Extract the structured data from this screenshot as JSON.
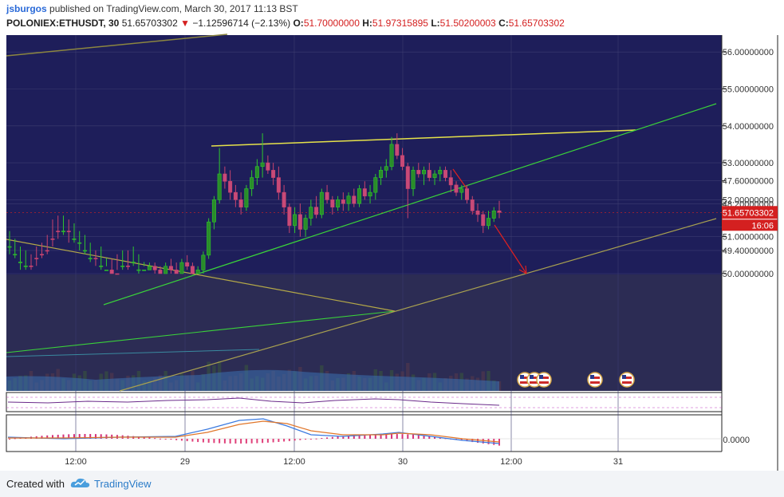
{
  "header": {
    "user": "jsburgos",
    "published_text": "published on TradingView.com, March 30, 2017 11:13 BST",
    "symbol": "POLONIEX:ETHUSDT, 30",
    "price": "51.65703302",
    "down_arrow": "▼",
    "change": "−1.12596714 (−2.13%)",
    "o_label": "O:",
    "o_value": "51.70000000",
    "h_label": "H:",
    "h_value": "51.97315895",
    "l_label": "L:",
    "l_value": "51.50200003",
    "c_label": "C:",
    "c_value": "51.65703302"
  },
  "footer": {
    "created_with": "Created with",
    "brand": "TradingView"
  },
  "colors": {
    "background": "#1e1e5a",
    "lower_background": "#2c2c54",
    "up_candle": "#2ec62e",
    "down_candle": "#c8436e",
    "trend_yellow": "#e6e24a",
    "trend_green": "#3ad23a",
    "trend_olive": "#8c8640",
    "arrow_red": "#e02020",
    "price_tag": "#d42020"
  },
  "chart_data": {
    "type": "candlestick",
    "symbol": "POLONIEX:ETHUSDT",
    "interval": "30",
    "last_price": "51.65703302",
    "countdown": "16:06",
    "price_axis": [
      "56.00000000",
      "55.00000000",
      "54.00000000",
      "53.00000000",
      "52.00000000",
      "51.00000000",
      "50.00000000",
      "49.40000000",
      "48.80000000",
      "48.20000000",
      "47.60000000"
    ],
    "time_axis": [
      "12:00",
      "29",
      "12:00",
      "30",
      "12:00",
      "31"
    ],
    "indicator_axis": [
      "0.0000"
    ],
    "ohlc": [
      [
        49.1,
        49.5,
        48.9,
        49.3
      ],
      [
        49.3,
        49.6,
        49.1,
        49.5
      ],
      [
        49.5,
        49.9,
        49.3,
        49.7
      ],
      [
        49.7,
        49.9,
        49.4,
        49.8
      ],
      [
        49.8,
        49.9,
        49.5,
        49.6
      ],
      [
        49.6,
        49.8,
        49.3,
        49.5
      ],
      [
        49.5,
        49.6,
        49.2,
        49.4
      ],
      [
        49.4,
        49.5,
        49.0,
        49.1
      ],
      [
        49.1,
        49.3,
        48.6,
        48.9
      ],
      [
        48.9,
        49.1,
        48.5,
        48.6
      ],
      [
        48.6,
        49.0,
        48.5,
        48.9
      ],
      [
        48.9,
        49.2,
        48.6,
        48.8
      ],
      [
        48.8,
        49.2,
        48.7,
        49.1
      ],
      [
        49.1,
        49.4,
        48.9,
        49.2
      ],
      [
        49.2,
        49.5,
        49.0,
        49.4
      ],
      [
        49.4,
        49.7,
        49.2,
        49.6
      ],
      [
        49.6,
        49.8,
        49.4,
        49.5
      ],
      [
        49.5,
        49.9,
        49.3,
        49.8
      ],
      [
        49.8,
        50.2,
        49.6,
        50.1
      ],
      [
        50.1,
        50.4,
        49.9,
        50.0
      ],
      [
        50.0,
        50.1,
        49.5,
        49.7
      ],
      [
        49.7,
        49.9,
        49.4,
        49.8
      ],
      [
        49.8,
        49.9,
        49.4,
        49.6
      ],
      [
        49.6,
        49.8,
        49.3,
        49.7
      ],
      [
        49.7,
        50.0,
        49.5,
        49.9
      ],
      [
        49.9,
        50.2,
        49.7,
        50.1
      ],
      [
        50.1,
        50.3,
        49.9,
        50.2
      ],
      [
        50.2,
        50.3,
        50.0,
        50.1
      ],
      [
        50.1,
        50.2,
        49.9,
        50.0
      ],
      [
        50.0,
        50.3,
        49.8,
        50.2
      ],
      [
        50.2,
        50.4,
        50.0,
        50.1
      ],
      [
        50.1,
        50.3,
        49.9,
        50.0
      ],
      [
        50.0,
        50.4,
        49.9,
        50.3
      ],
      [
        50.3,
        50.5,
        50.1,
        50.2
      ],
      [
        50.2,
        50.3,
        49.9,
        50.0
      ],
      [
        50.0,
        50.2,
        49.9,
        50.1
      ],
      [
        50.1,
        50.6,
        50.0,
        50.5
      ],
      [
        50.5,
        51.5,
        50.4,
        51.4
      ],
      [
        51.4,
        52.1,
        51.2,
        52.0
      ],
      [
        52.0,
        53.4,
        51.9,
        52.7
      ],
      [
        52.7,
        52.9,
        52.3,
        52.5
      ],
      [
        52.5,
        52.8,
        52.0,
        52.2
      ],
      [
        52.2,
        52.4,
        51.8,
        52.0
      ],
      [
        52.0,
        52.2,
        51.6,
        51.8
      ],
      [
        51.8,
        52.4,
        51.7,
        52.3
      ],
      [
        52.3,
        52.8,
        52.1,
        52.6
      ],
      [
        52.6,
        53.1,
        52.4,
        52.9
      ],
      [
        52.9,
        53.8,
        52.6,
        53.0
      ],
      [
        53.0,
        53.2,
        52.7,
        52.8
      ],
      [
        52.8,
        53.0,
        52.4,
        52.6
      ],
      [
        52.6,
        52.9,
        52.0,
        52.2
      ],
      [
        52.2,
        52.4,
        51.6,
        51.8
      ],
      [
        51.8,
        51.9,
        51.1,
        51.3
      ],
      [
        51.3,
        51.8,
        51.1,
        51.6
      ],
      [
        51.6,
        51.9,
        51.0,
        51.2
      ],
      [
        51.2,
        51.6,
        51.0,
        51.5
      ],
      [
        51.5,
        52.0,
        51.3,
        51.8
      ],
      [
        51.8,
        52.1,
        51.5,
        51.6
      ],
      [
        51.6,
        52.3,
        51.5,
        52.2
      ],
      [
        52.2,
        52.4,
        51.9,
        52.0
      ],
      [
        52.0,
        52.1,
        51.6,
        51.8
      ],
      [
        51.8,
        52.1,
        51.7,
        52.0
      ],
      [
        52.0,
        52.2,
        51.7,
        51.9
      ],
      [
        51.9,
        52.2,
        51.7,
        52.1
      ],
      [
        52.1,
        52.3,
        51.8,
        51.9
      ],
      [
        51.9,
        52.4,
        51.8,
        52.3
      ],
      [
        52.3,
        52.5,
        52.0,
        52.1
      ],
      [
        52.1,
        52.4,
        51.9,
        52.2
      ],
      [
        52.2,
        52.7,
        52.0,
        52.6
      ],
      [
        52.6,
        52.9,
        52.4,
        52.8
      ],
      [
        52.8,
        53.1,
        52.6,
        52.9
      ],
      [
        52.9,
        53.7,
        52.8,
        53.5
      ],
      [
        53.5,
        53.8,
        53.1,
        53.2
      ],
      [
        53.2,
        53.4,
        52.8,
        52.9
      ],
      [
        52.9,
        53.0,
        51.5,
        52.3
      ],
      [
        52.3,
        52.9,
        52.1,
        52.8
      ],
      [
        52.8,
        53.0,
        52.6,
        52.7
      ],
      [
        52.7,
        52.9,
        52.4,
        52.8
      ],
      [
        52.8,
        53.0,
        52.5,
        52.6
      ],
      [
        52.6,
        52.8,
        52.4,
        52.7
      ],
      [
        52.7,
        52.9,
        52.5,
        52.8
      ],
      [
        52.8,
        52.9,
        52.5,
        52.6
      ],
      [
        52.6,
        52.8,
        52.2,
        52.4
      ],
      [
        52.4,
        52.5,
        52.1,
        52.2
      ],
      [
        52.2,
        52.4,
        52.0,
        52.3
      ],
      [
        52.3,
        52.4,
        51.9,
        52.0
      ],
      [
        52.0,
        52.1,
        51.6,
        51.7
      ],
      [
        51.7,
        51.9,
        51.4,
        51.6
      ],
      [
        51.6,
        51.7,
        51.1,
        51.3
      ],
      [
        51.3,
        51.7,
        51.2,
        51.5
      ],
      [
        51.5,
        51.8,
        51.4,
        51.7
      ],
      [
        51.7,
        51.97,
        51.5,
        51.657
      ]
    ],
    "annotations": [
      "resistance line",
      "rising support line",
      "projected drop to 50.00"
    ]
  }
}
